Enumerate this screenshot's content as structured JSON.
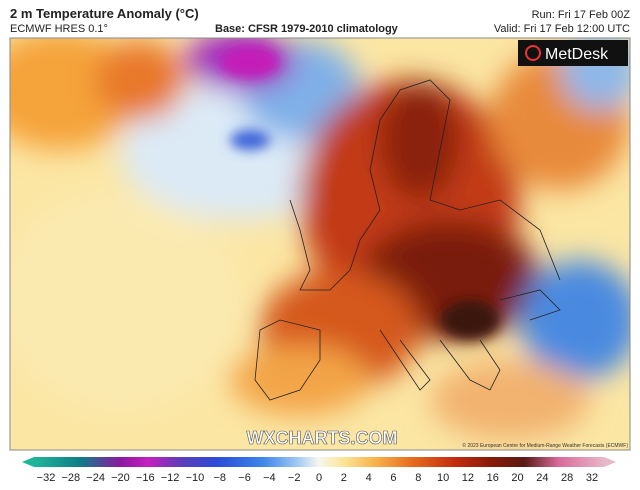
{
  "header": {
    "title": "2 m Temperature Anomaly (°C)",
    "model": "ECMWF HRES 0.1°",
    "base": "Base: CFSR 1979-2010 climatology",
    "run": "Run: Fri 17 Feb 00Z",
    "valid": "Valid: Fri 17 Feb 12:00 UTC"
  },
  "logo": "MetDesk",
  "watermark": "WXCHARTS.COM",
  "copyright": "© 2023 European Centre for Medium-Range Weather Forecasts (ECMWF)",
  "colorbar": {
    "ticks": [
      {
        "value": -32,
        "label": "−32"
      },
      {
        "value": -28,
        "label": "−28"
      },
      {
        "value": -24,
        "label": "−24"
      },
      {
        "value": -20,
        "label": "−20"
      },
      {
        "value": -16,
        "label": "−16"
      },
      {
        "value": -12,
        "label": "−12"
      },
      {
        "value": -10,
        "label": "−10"
      },
      {
        "value": -8,
        "label": "−8"
      },
      {
        "value": -6,
        "label": "−6"
      },
      {
        "value": -4,
        "label": "−4"
      },
      {
        "value": -2,
        "label": "−2"
      },
      0,
      2,
      4,
      6,
      8,
      10,
      12,
      16,
      20,
      24,
      28,
      32
    ]
  }
}
